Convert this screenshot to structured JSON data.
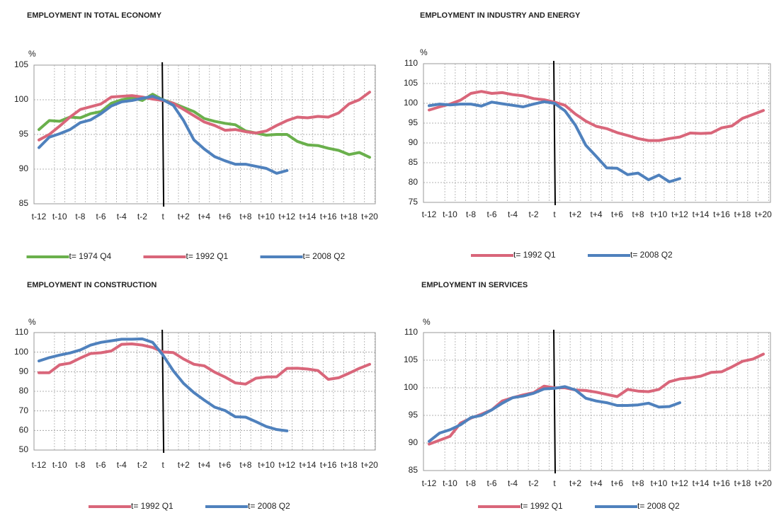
{
  "chart_data": [
    {
      "type": "line",
      "title": "EMPLOYMENT IN TOTAL ECONOMY",
      "y_unit": "%",
      "categories": [
        "t-12",
        null,
        "t-10",
        null,
        "t-8",
        null,
        "t-6",
        null,
        "t-4",
        null,
        "t-2",
        null,
        "t",
        null,
        "t+2",
        null,
        "t+4",
        null,
        "t+6",
        null,
        "t+8",
        null,
        "t+10",
        null,
        "t+12",
        null,
        "t+14",
        null,
        "t+16",
        null,
        "t+18",
        null,
        "t+20"
      ],
      "series": [
        {
          "name": "t= 1974 Q4",
          "color": "#6ab04c",
          "values": [
            95.7,
            97,
            96.9,
            97.5,
            97.4,
            98,
            98.3,
            99.5,
            100,
            100.3,
            99.9,
            100.8,
            100,
            99.5,
            98.9,
            98.3,
            97.3,
            96.9,
            96.6,
            96.4,
            95.5,
            95.2,
            94.9,
            95,
            95,
            94,
            93.5,
            93.4,
            93,
            92.7,
            92.1,
            92.4,
            91.7
          ]
        },
        {
          "name": "t= 1992 Q1",
          "color": "#d9667a",
          "values": [
            94.2,
            95,
            96.2,
            97.5,
            98.6,
            99,
            99.4,
            100.4,
            100.5,
            100.6,
            100.4,
            100.1,
            99.9,
            99.5,
            98.6,
            97.7,
            96.8,
            96.3,
            95.6,
            95.7,
            95.4,
            95.2,
            95.5,
            96.3,
            97,
            97.5,
            97.4,
            97.6,
            97.5,
            98.1,
            99.4,
            100,
            101.1
          ]
        },
        {
          "name": "t= 2008 Q2",
          "color": "#4f81bd",
          "values": [
            93.1,
            94.6,
            95.1,
            95.7,
            96.7,
            97.1,
            98,
            99.1,
            99.7,
            99.9,
            100.2,
            100.5,
            100,
            99.2,
            97,
            94.2,
            92.9,
            91.8,
            91.2,
            90.7,
            90.7,
            90.4,
            90.1,
            89.4,
            89.8,
            null,
            null,
            null,
            null,
            null,
            null,
            null,
            null
          ]
        }
      ],
      "ylim": [
        85,
        105
      ],
      "yticks": [
        85,
        90,
        95,
        100,
        105
      ],
      "grid": true,
      "vline": "t"
    },
    {
      "type": "line",
      "title": "EMPLOYMENT IN INDUSTRY AND ENERGY",
      "y_unit": "%",
      "categories": [
        "t-12",
        null,
        "t-10",
        null,
        "t-8",
        null,
        "t-6",
        null,
        "t-4",
        null,
        "t-2",
        null,
        "t",
        null,
        "t+2",
        null,
        "t+4",
        null,
        "t+6",
        null,
        "t+8",
        null,
        "t+10",
        null,
        "t+12",
        null,
        "t+14",
        null,
        "t+16",
        null,
        "t+18",
        null,
        "t+20"
      ],
      "series": [
        {
          "name": "t= 1992 Q1",
          "color": "#d9667a",
          "values": [
            98.3,
            99.1,
            99.8,
            100.8,
            102.5,
            103,
            102.5,
            102.7,
            102.2,
            101.9,
            101.2,
            100.9,
            100.3,
            99.5,
            97.3,
            95.5,
            94.2,
            93.6,
            92.6,
            91.9,
            91.1,
            90.6,
            90.6,
            91.1,
            91.5,
            92.5,
            92.4,
            92.5,
            93.8,
            94.3,
            96.2,
            97.2,
            98.2
          ]
        },
        {
          "name": "t= 2008 Q2",
          "color": "#4f81bd",
          "values": [
            99.4,
            99.8,
            99.6,
            99.8,
            99.8,
            99.3,
            100.3,
            99.9,
            99.5,
            99.1,
            99.8,
            100.4,
            100,
            98.1,
            94.5,
            89.4,
            86.6,
            83.7,
            83.6,
            82,
            82.4,
            80.7,
            81.9,
            80.2,
            81,
            null,
            null,
            null,
            null,
            null,
            null,
            null,
            null
          ]
        }
      ],
      "ylim": [
        75,
        110
      ],
      "yticks": [
        75,
        80,
        85,
        90,
        95,
        100,
        105,
        110
      ],
      "grid": true,
      "vline": "t"
    },
    {
      "type": "line",
      "title": "EMPLOYMENT IN CONSTRUCTION",
      "y_unit": "%",
      "categories": [
        "t-12",
        null,
        "t-10",
        null,
        "t-8",
        null,
        "t-6",
        null,
        "t-4",
        null,
        "t-2",
        null,
        "t",
        null,
        "t+2",
        null,
        "t+4",
        null,
        "t+6",
        null,
        "t+8",
        null,
        "t+10",
        null,
        "t+12",
        null,
        "t+14",
        null,
        "t+16",
        null,
        "t+18",
        null,
        "t+20"
      ],
      "series": [
        {
          "name": "t= 1992 Q1",
          "color": "#d9667a",
          "values": [
            89.5,
            89.5,
            93.5,
            94.4,
            97,
            99.3,
            99.7,
            100.6,
            104,
            104.2,
            103.6,
            102.4,
            100.1,
            99.8,
            96.5,
            93.8,
            93,
            89.8,
            87.3,
            84.3,
            83.7,
            86.7,
            87.3,
            87.4,
            91.7,
            91.8,
            91.4,
            90.6,
            86.1,
            86.9,
            89.2,
            91.7,
            93.8
          ]
        },
        {
          "name": "t= 2008 Q2",
          "color": "#4f81bd",
          "values": [
            95.5,
            97.2,
            98.5,
            99.6,
            101.1,
            103.6,
            105,
            105.8,
            106.6,
            106.6,
            106.8,
            105,
            98.5,
            90.5,
            84,
            79.3,
            75.5,
            71.9,
            70.2,
            67,
            66.8,
            64.5,
            62,
            60.5,
            59.8,
            null,
            null,
            null,
            null,
            null,
            null,
            null,
            null
          ]
        }
      ],
      "ylim": [
        50,
        110
      ],
      "yticks": [
        50,
        60,
        70,
        80,
        90,
        100,
        110
      ],
      "grid": true,
      "vline": "t"
    },
    {
      "type": "line",
      "title": "EMPLOYMENT IN SERVICES",
      "y_unit": "%",
      "categories": [
        "t-12",
        null,
        "t-10",
        null,
        "t-8",
        null,
        "t-6",
        null,
        "t-4",
        null,
        "t-2",
        null,
        "t",
        null,
        "t+2",
        null,
        "t+4",
        null,
        "t+6",
        null,
        "t+8",
        null,
        "t+10",
        null,
        "t+12",
        null,
        "t+14",
        null,
        "t+16",
        null,
        "t+18",
        null,
        "t+20"
      ],
      "series": [
        {
          "name": "t= 1992 Q1",
          "color": "#d9667a",
          "values": [
            89.8,
            90.5,
            91.2,
            93.6,
            94.5,
            95.2,
            96,
            97.6,
            98.2,
            98.7,
            99.1,
            100.3,
            100,
            100,
            99.6,
            99.5,
            99.2,
            98.8,
            98.4,
            99.7,
            99.4,
            99.3,
            99.7,
            101.1,
            101.6,
            101.8,
            102.1,
            102.8,
            102.9,
            103.8,
            104.8,
            105.2,
            106.1
          ]
        },
        {
          "name": "t= 2008 Q2",
          "color": "#4f81bd",
          "values": [
            90.3,
            91.8,
            92.4,
            93.3,
            94.6,
            95,
            96,
            97.2,
            98.2,
            98.5,
            99,
            99.8,
            99.9,
            100.2,
            99.6,
            98.1,
            97.6,
            97.3,
            96.8,
            96.8,
            96.9,
            97.2,
            96.5,
            96.6,
            97.3,
            null,
            null,
            null,
            null,
            null,
            null,
            null,
            null
          ]
        }
      ],
      "ylim": [
        85,
        110
      ],
      "yticks": [
        85,
        90,
        95,
        100,
        105,
        110
      ],
      "grid": true,
      "vline": "t"
    }
  ]
}
